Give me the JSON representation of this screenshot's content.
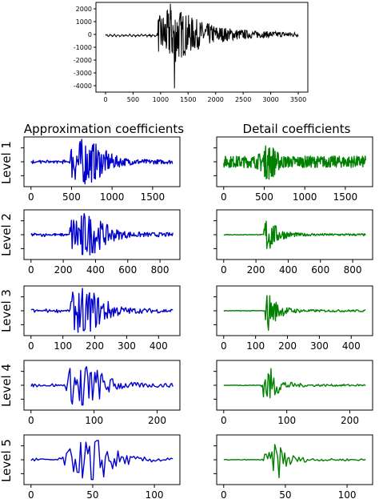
{
  "colors": {
    "approx": "#0000cc",
    "detail": "#008000",
    "original": "#000000"
  },
  "headers": {
    "approx": "Approximation coefficients",
    "detail": "Detail coefficients"
  },
  "levels": [
    "Level 1",
    "Level 2",
    "Level 3",
    "Level 4",
    "Level 5"
  ],
  "chart_data": [
    {
      "type": "line",
      "panel": "original",
      "x_range": [
        0,
        3500
      ],
      "ylim": [
        -4500,
        2500
      ],
      "xticks": [
        0,
        500,
        1000,
        1500,
        2000,
        2500,
        3000,
        3500
      ],
      "yticks": [
        2000,
        1000,
        0,
        -1000,
        -2000,
        -3000,
        -4000
      ],
      "burst_start": 950,
      "burst_end": 1800,
      "peak_x": 1250,
      "peak_high": 2400,
      "peak_low": -4200
    },
    {
      "type": "line",
      "panel": "approx",
      "level": 1,
      "x_range": [
        0,
        1750
      ],
      "xticks": [
        0,
        500,
        1000,
        1500
      ],
      "burst_start": 480,
      "peak_x": 650
    },
    {
      "type": "line",
      "panel": "approx",
      "level": 2,
      "x_range": [
        0,
        880
      ],
      "xticks": [
        0,
        200,
        400,
        600,
        800
      ],
      "burst_start": 240,
      "peak_x": 320
    },
    {
      "type": "line",
      "panel": "approx",
      "level": 3,
      "x_range": [
        0,
        445
      ],
      "xticks": [
        0,
        100,
        200,
        300,
        400
      ],
      "burst_start": 120,
      "peak_x": 165
    },
    {
      "type": "line",
      "panel": "approx",
      "level": 4,
      "x_range": [
        0,
        225
      ],
      "xticks": [
        0,
        100,
        200
      ],
      "burst_start": 55,
      "peak_x": 82
    },
    {
      "type": "line",
      "panel": "approx",
      "level": 5,
      "x_range": [
        0,
        115
      ],
      "xticks": [
        0,
        50,
        100
      ],
      "burst_start": 25,
      "peak_x": 50
    },
    {
      "type": "line",
      "panel": "detail",
      "level": 1,
      "x_range": [
        0,
        1750
      ],
      "xticks": [
        0,
        500,
        1000,
        1500
      ],
      "burst_start": 480,
      "peak_x": 560
    },
    {
      "type": "line",
      "panel": "detail",
      "level": 2,
      "x_range": [
        0,
        880
      ],
      "xticks": [
        0,
        200,
        400,
        600,
        800
      ],
      "burst_start": 250,
      "peak_x": 270
    },
    {
      "type": "line",
      "panel": "detail",
      "level": 3,
      "x_range": [
        0,
        445
      ],
      "xticks": [
        0,
        100,
        200,
        300,
        400
      ],
      "burst_start": 130,
      "peak_x": 140
    },
    {
      "type": "line",
      "panel": "detail",
      "level": 4,
      "x_range": [
        0,
        225
      ],
      "xticks": [
        0,
        100,
        200
      ],
      "burst_start": 60,
      "peak_x": 72
    },
    {
      "type": "line",
      "panel": "detail",
      "level": 5,
      "x_range": [
        0,
        115
      ],
      "xticks": [
        0,
        50,
        100
      ],
      "burst_start": 30,
      "peak_x": 44
    }
  ]
}
